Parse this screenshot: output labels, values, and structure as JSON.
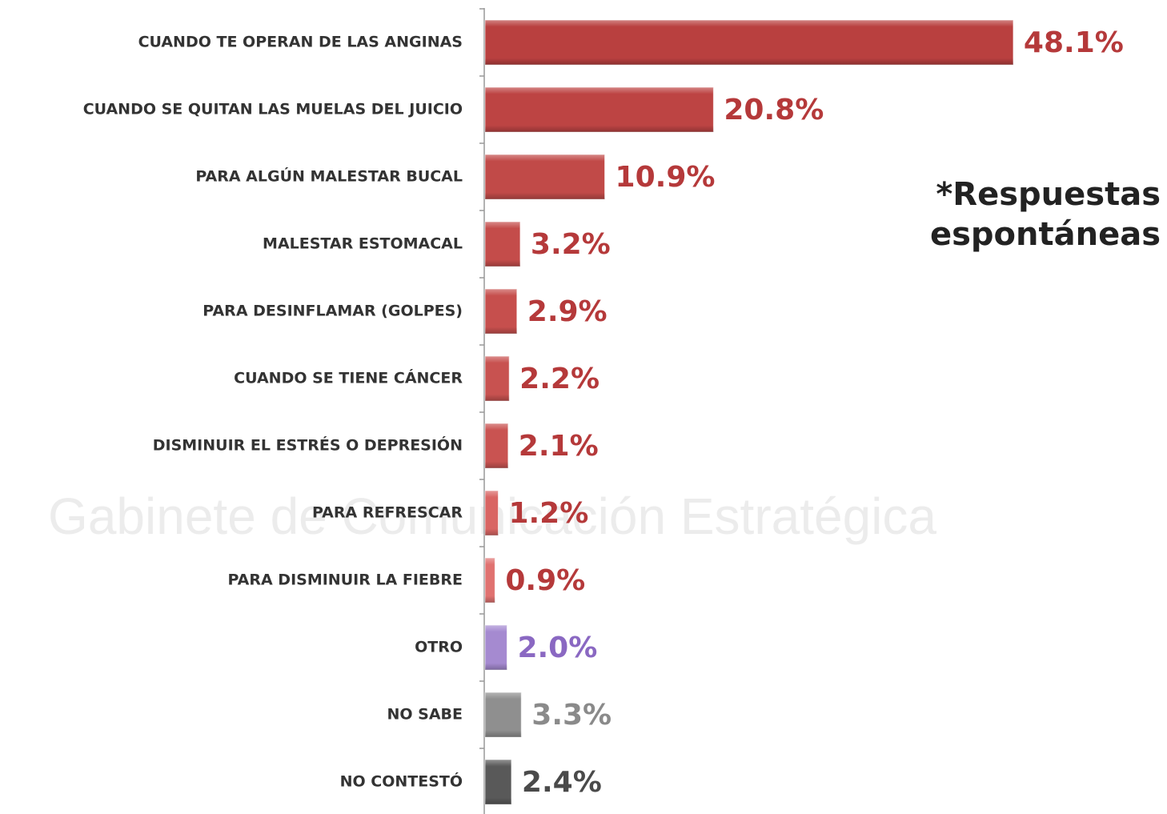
{
  "chart_data": {
    "type": "bar",
    "orientation": "horizontal",
    "categories": [
      "CUANDO TE OPERAN DE LAS ANGINAS",
      "CUANDO SE QUITAN LAS MUELAS DEL JUICIO",
      "PARA ALGÚN MALESTAR BUCAL",
      "MALESTAR ESTOMACAL",
      "PARA DESINFLAMAR (GOLPES)",
      "CUANDO SE TIENE CÁNCER",
      "DISMINUIR EL ESTRÉS O DEPRESIÓN",
      "PARA REFRESCAR",
      "PARA DISMINUIR LA FIEBRE",
      "OTRO",
      "NO SABE",
      "NO CONTESTÓ"
    ],
    "values": [
      48.1,
      20.8,
      10.9,
      3.2,
      2.9,
      2.2,
      2.1,
      1.2,
      0.9,
      2.0,
      3.3,
      2.4
    ],
    "value_labels": [
      "48.1%",
      "20.8%",
      "10.9%",
      "3.2%",
      "2.9%",
      "2.2%",
      "2.1%",
      "1.2%",
      "0.9%",
      "2.0%",
      "3.3%",
      "2.4%"
    ],
    "colors": [
      "#b9403f",
      "#bd4443",
      "#c14a48",
      "#c44c4a",
      "#c64f4d",
      "#c85250",
      "#c95351",
      "#d96563",
      "#e07270",
      "#a58ad0",
      "#8f8f8f",
      "#595959"
    ],
    "label_colors": [
      "#b5393a",
      "#b5393a",
      "#b5393a",
      "#b5393a",
      "#b5393a",
      "#b5393a",
      "#b5393a",
      "#b5393a",
      "#b5393a",
      "#8a68c2",
      "#8a8a8a",
      "#4a4a4a"
    ],
    "xlim": [
      0,
      50
    ],
    "annotation": [
      "*Respuestas",
      "espontáneas"
    ],
    "watermark": "Gabinete de Comunicación Estratégica"
  }
}
